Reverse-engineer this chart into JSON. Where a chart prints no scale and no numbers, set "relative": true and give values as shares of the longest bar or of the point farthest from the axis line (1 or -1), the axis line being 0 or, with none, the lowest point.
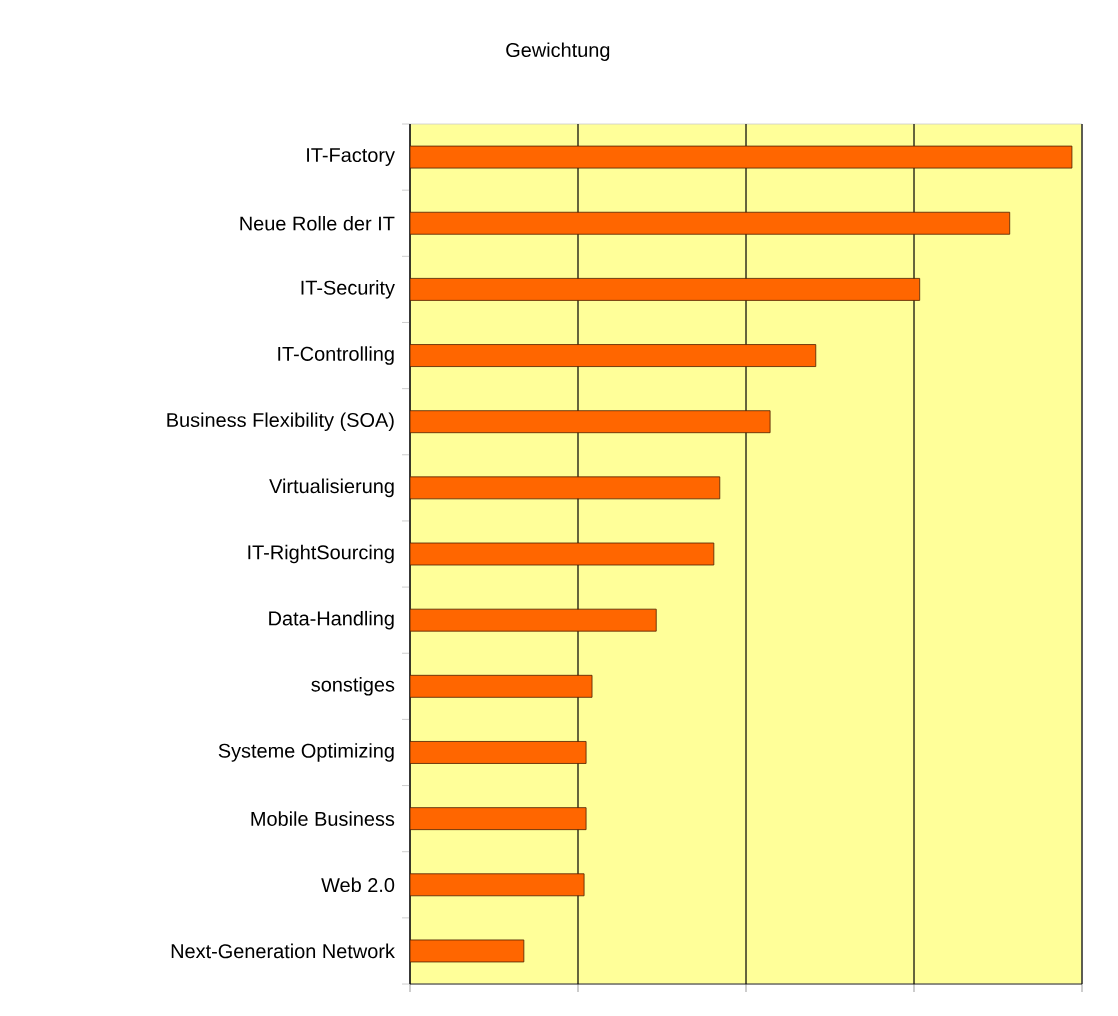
{
  "chart_data": {
    "type": "bar",
    "orientation": "horizontal",
    "relative": true,
    "title": "Gewichtung",
    "categories": [
      "IT-Factory",
      "Neue Rolle der IT",
      "IT-Security",
      "IT-Controlling",
      "Business Flexibility (SOA)",
      "Virtualisierung",
      "IT-RightSourcing",
      "Data-Handling",
      "sonstiges",
      "Systeme Optimizing",
      "Mobile Business",
      "Web 2.0",
      "Next-Generation Network"
    ],
    "values": [
      1,
      0.906,
      0.77,
      0.613,
      0.544,
      0.468,
      0.459,
      0.372,
      0.275,
      0.266,
      0.266,
      0.263,
      0.172
    ],
    "color": "#ff6600",
    "grid": "x"
  }
}
